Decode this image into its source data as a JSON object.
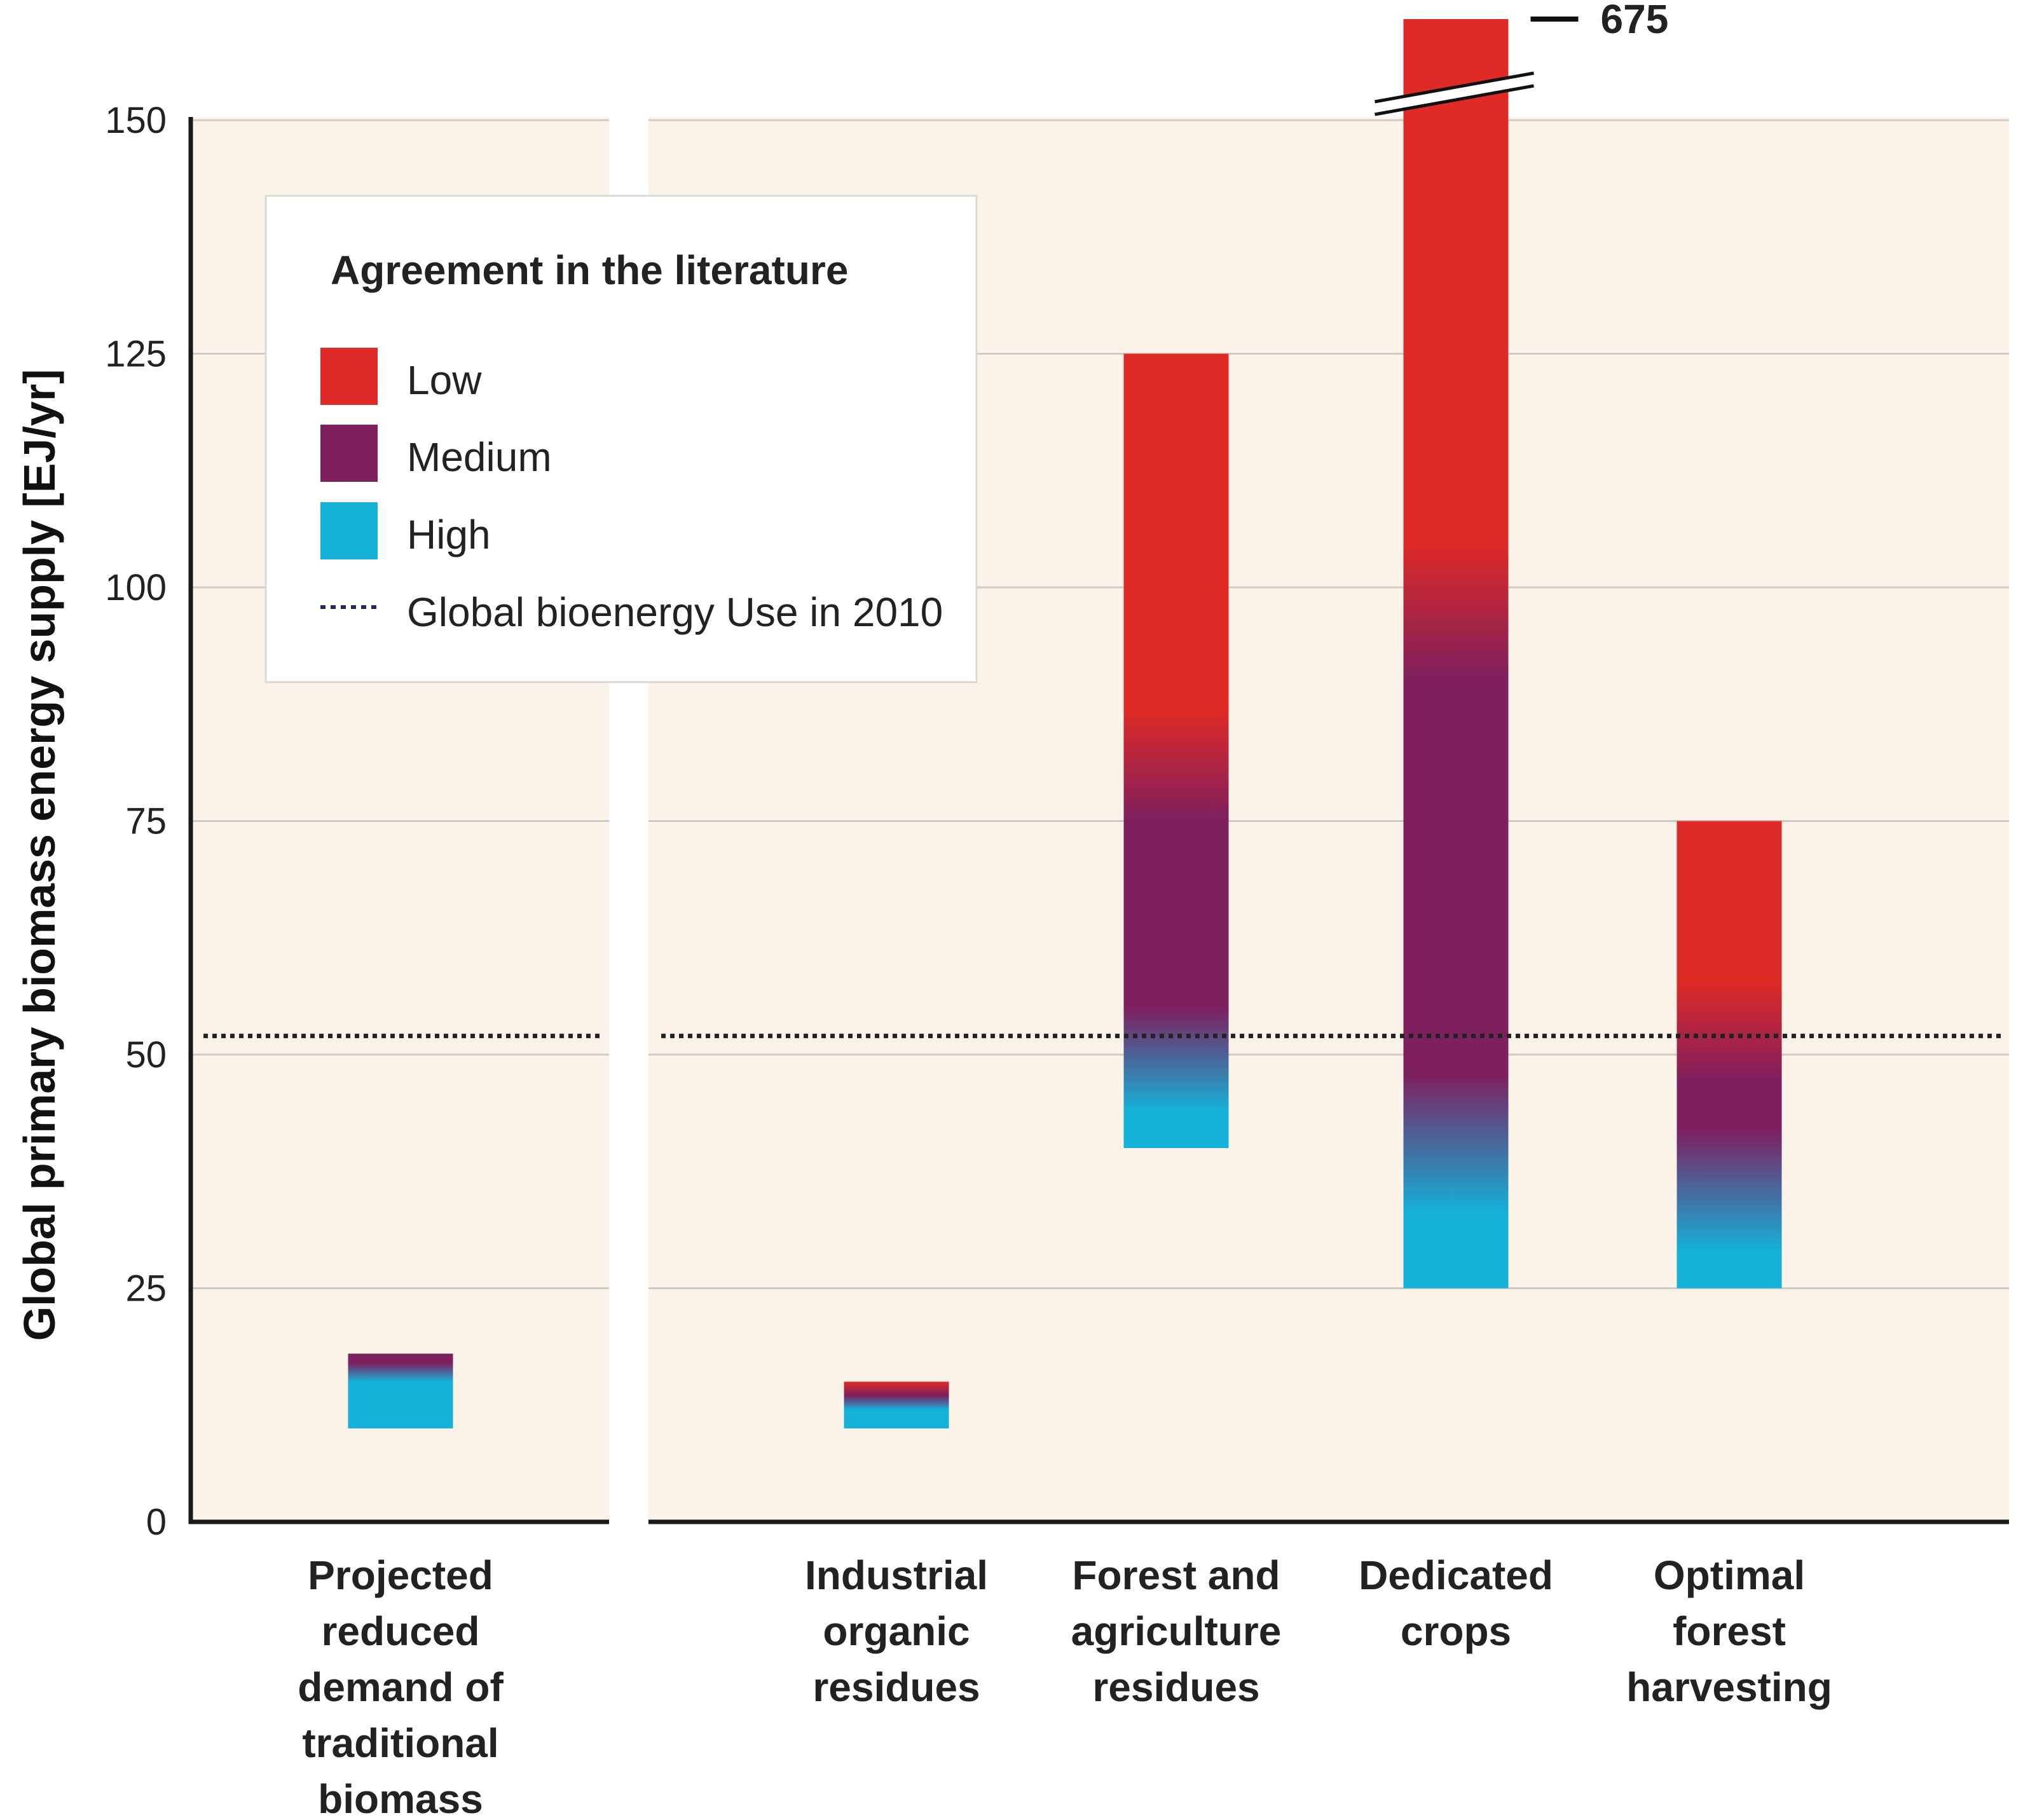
{
  "chart_data": {
    "type": "bar",
    "subtype": "floating-range",
    "ylabel": "Global primary biomass energy supply [EJ/yr]",
    "ylim": [
      0,
      150
    ],
    "yticks": [
      0,
      25,
      50,
      75,
      100,
      125,
      150
    ],
    "grid": true,
    "categories": [
      "Projected reduced demand of traditional biomass",
      "Industrial organic residues",
      "Forest and agriculture residues",
      "Dedicated crops",
      "Optimal forest harvesting"
    ],
    "category_label_lines": [
      [
        "Projected",
        "reduced",
        "demand of",
        "traditional",
        "biomass"
      ],
      [
        "Industrial",
        "organic",
        "residues"
      ],
      [
        "Forest and",
        "agriculture",
        "residues"
      ],
      [
        "Dedicated",
        "crops"
      ],
      [
        "Optimal",
        "forest",
        "harvesting"
      ]
    ],
    "ranges": [
      {
        "low": 10,
        "high": 18
      },
      {
        "low": 10,
        "high": 15
      },
      {
        "low": 40,
        "high": 125
      },
      {
        "low": 25,
        "high": 675,
        "axis_break": true,
        "break_label": "675"
      },
      {
        "low": 25,
        "high": 75
      }
    ],
    "agreement_gradients": [
      [
        {
          "value": 10,
          "level": "high"
        },
        {
          "value": 15,
          "level": "high"
        },
        {
          "value": 17,
          "level": "medium"
        },
        {
          "value": 18,
          "level": "medium"
        }
      ],
      [
        {
          "value": 10,
          "level": "high"
        },
        {
          "value": 12,
          "level": "high"
        },
        {
          "value": 13.5,
          "level": "medium"
        },
        {
          "value": 15,
          "level": "low"
        }
      ],
      [
        {
          "value": 40,
          "level": "high"
        },
        {
          "value": 44,
          "level": "high"
        },
        {
          "value": 55,
          "level": "medium"
        },
        {
          "value": 75,
          "level": "medium"
        },
        {
          "value": 87,
          "level": "low"
        },
        {
          "value": 125,
          "level": "low"
        }
      ],
      [
        {
          "value": 25,
          "level": "high"
        },
        {
          "value": 33,
          "level": "high"
        },
        {
          "value": 48,
          "level": "medium"
        },
        {
          "value": 90,
          "level": "medium"
        },
        {
          "value": 105,
          "level": "low"
        },
        {
          "value": 160,
          "level": "low"
        }
      ],
      [
        {
          "value": 25,
          "level": "high"
        },
        {
          "value": 29,
          "level": "high"
        },
        {
          "value": 42,
          "level": "medium"
        },
        {
          "value": 47,
          "level": "medium"
        },
        {
          "value": 58,
          "level": "low"
        },
        {
          "value": 75,
          "level": "low"
        }
      ]
    ],
    "reference_line": {
      "value": 52,
      "label": "Global bioenergy Use in 2010",
      "style": "dotted"
    },
    "legend": {
      "title": "Agreement in the literature",
      "placement": "top-left",
      "items": [
        {
          "label": "Low",
          "color": "#e02a26"
        },
        {
          "label": "Medium",
          "color": "#7e1f5e"
        },
        {
          "label": "High",
          "color": "#14b1d9"
        }
      ]
    }
  },
  "colors": {
    "background": "#fbf3e8",
    "grid": "#cfcac4",
    "axis": "#1a1a1a",
    "low": "#e02a26",
    "medium": "#7e1f5e",
    "high": "#14b1d9",
    "reference_line": "#222222"
  }
}
